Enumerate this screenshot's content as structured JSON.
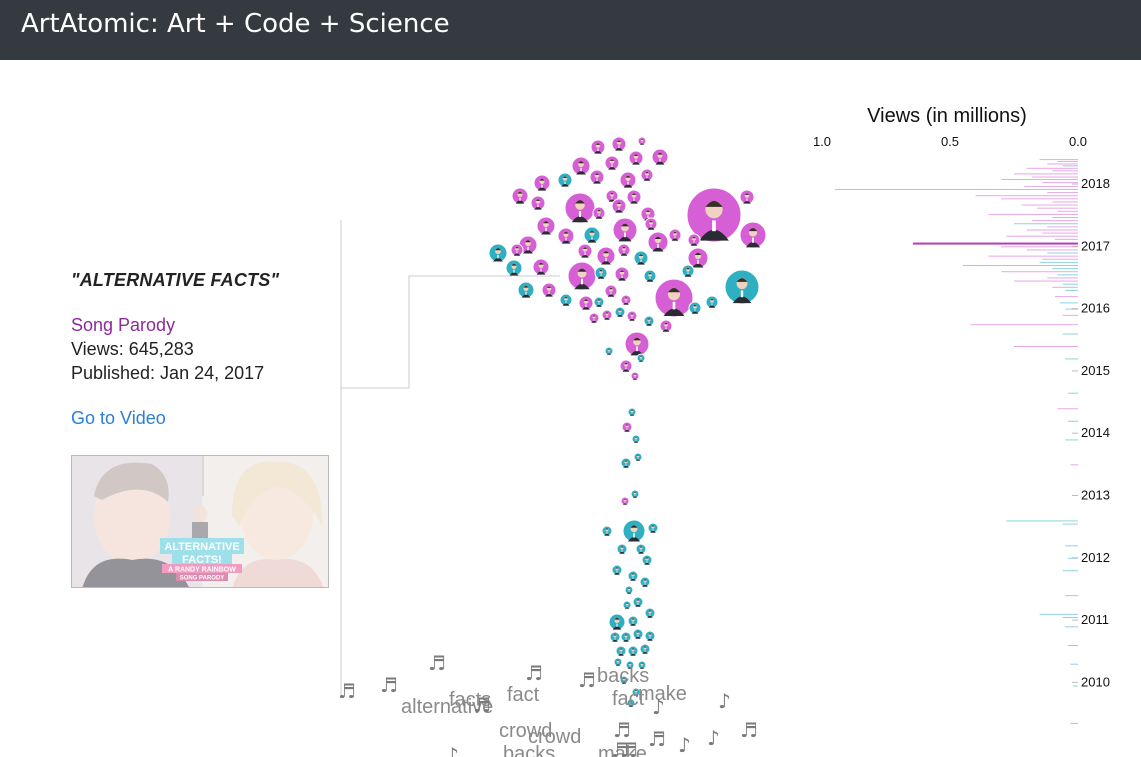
{
  "header": {
    "title": "ArtAtomic: Art + Code + Science"
  },
  "info": {
    "title": "\"ALTERNATIVE FACTS\"",
    "category": "Song Parody",
    "views": "Views: 645,283",
    "published": "Published: Jan 24, 2017",
    "link": "Go to Video",
    "thumbnail": {
      "line1": "ALTERNATIVE",
      "line2": "FACTS!",
      "line3": "A RANDY RAINBOW",
      "line4": "SONG PARODY"
    }
  },
  "colors": {
    "parody": "#d65fd6",
    "other": "#2eb0c2",
    "header_bg": "#343a40",
    "link": "#2a7fd4",
    "category": "#8e2a9c"
  },
  "chart_data": {
    "type": "bar",
    "title": "Views (in millions)",
    "x_ticks": [
      "1.0",
      "0.5",
      "0.0"
    ],
    "xlim": [
      1.0,
      0.0
    ],
    "y_ticks": [
      "2018",
      "2017",
      "2016",
      "2015",
      "2014",
      "2013",
      "2012",
      "2011",
      "2010"
    ],
    "year_values": [
      2018,
      2017,
      2016,
      2015,
      2014,
      2013,
      2012,
      2011,
      2010
    ],
    "highlight": {
      "date": "2017-01-24",
      "views_millions": 0.645
    },
    "bars": [
      {
        "year": 2018.4,
        "v": 0.15,
        "c": "p"
      },
      {
        "year": 2018.37,
        "v": 0.08,
        "c": "p"
      },
      {
        "year": 2018.33,
        "v": 0.12,
        "c": "p"
      },
      {
        "year": 2018.3,
        "v": 0.06,
        "c": "t"
      },
      {
        "year": 2018.26,
        "v": 0.2,
        "c": "p"
      },
      {
        "year": 2018.22,
        "v": 0.1,
        "c": "p"
      },
      {
        "year": 2018.17,
        "v": 0.25,
        "c": "p"
      },
      {
        "year": 2018.12,
        "v": 0.18,
        "c": "p"
      },
      {
        "year": 2018.08,
        "v": 0.3,
        "c": "p"
      },
      {
        "year": 2018.03,
        "v": 0.14,
        "c": "p"
      },
      {
        "year": 2017.97,
        "v": 0.21,
        "c": "p"
      },
      {
        "year": 2017.92,
        "v": 0.95,
        "c": "p"
      },
      {
        "year": 2017.87,
        "v": 0.12,
        "c": "p"
      },
      {
        "year": 2017.82,
        "v": 0.4,
        "c": "p"
      },
      {
        "year": 2017.77,
        "v": 0.3,
        "c": "p"
      },
      {
        "year": 2017.72,
        "v": 0.1,
        "c": "p"
      },
      {
        "year": 2017.67,
        "v": 0.22,
        "c": "p"
      },
      {
        "year": 2017.62,
        "v": 0.16,
        "c": "p"
      },
      {
        "year": 2017.57,
        "v": 0.08,
        "c": "p"
      },
      {
        "year": 2017.52,
        "v": 0.35,
        "c": "p"
      },
      {
        "year": 2017.47,
        "v": 0.1,
        "c": "p"
      },
      {
        "year": 2017.42,
        "v": 0.18,
        "c": "p"
      },
      {
        "year": 2017.37,
        "v": 0.25,
        "c": "t"
      },
      {
        "year": 2017.32,
        "v": 0.12,
        "c": "p"
      },
      {
        "year": 2017.27,
        "v": 0.2,
        "c": "p"
      },
      {
        "year": 2017.22,
        "v": 0.14,
        "c": "p"
      },
      {
        "year": 2017.17,
        "v": 0.28,
        "c": "p"
      },
      {
        "year": 2017.12,
        "v": 0.09,
        "c": "p"
      },
      {
        "year": 2017.06,
        "v": 0.645,
        "c": "h"
      },
      {
        "year": 2017.0,
        "v": 0.3,
        "c": "p"
      },
      {
        "year": 2016.95,
        "v": 0.2,
        "c": "p"
      },
      {
        "year": 2016.9,
        "v": 0.12,
        "c": "t"
      },
      {
        "year": 2016.85,
        "v": 0.35,
        "c": "p"
      },
      {
        "year": 2016.8,
        "v": 0.14,
        "c": "p"
      },
      {
        "year": 2016.75,
        "v": 0.15,
        "c": "t"
      },
      {
        "year": 2016.7,
        "v": 0.45,
        "c": "p"
      },
      {
        "year": 2016.65,
        "v": 0.1,
        "c": "t"
      },
      {
        "year": 2016.6,
        "v": 0.3,
        "c": "p"
      },
      {
        "year": 2016.55,
        "v": 0.08,
        "c": "t"
      },
      {
        "year": 2016.5,
        "v": 0.12,
        "c": "p"
      },
      {
        "year": 2016.45,
        "v": 0.25,
        "c": "p"
      },
      {
        "year": 2016.4,
        "v": 0.06,
        "c": "t"
      },
      {
        "year": 2016.35,
        "v": 0.1,
        "c": "p"
      },
      {
        "year": 2016.3,
        "v": 0.05,
        "c": "t"
      },
      {
        "year": 2016.2,
        "v": 0.09,
        "c": "p"
      },
      {
        "year": 2016.1,
        "v": 0.07,
        "c": "t"
      },
      {
        "year": 2016.0,
        "v": 0.05,
        "c": "t"
      },
      {
        "year": 2015.9,
        "v": 0.06,
        "c": "p"
      },
      {
        "year": 2015.75,
        "v": 0.42,
        "c": "p"
      },
      {
        "year": 2015.6,
        "v": 0.06,
        "c": "t"
      },
      {
        "year": 2015.4,
        "v": 0.25,
        "c": "p"
      },
      {
        "year": 2015.2,
        "v": 0.05,
        "c": "t"
      },
      {
        "year": 2014.65,
        "v": 0.04,
        "c": "t"
      },
      {
        "year": 2014.4,
        "v": 0.08,
        "c": "p"
      },
      {
        "year": 2014.2,
        "v": 0.04,
        "c": "t"
      },
      {
        "year": 2013.9,
        "v": 0.05,
        "c": "t"
      },
      {
        "year": 2013.5,
        "v": 0.03,
        "c": "p"
      },
      {
        "year": 2012.6,
        "v": 0.28,
        "c": "t"
      },
      {
        "year": 2012.55,
        "v": 0.06,
        "c": "t"
      },
      {
        "year": 2012.2,
        "v": 0.05,
        "c": "t"
      },
      {
        "year": 2012.0,
        "v": 0.04,
        "c": "t"
      },
      {
        "year": 2011.8,
        "v": 0.06,
        "c": "t"
      },
      {
        "year": 2011.4,
        "v": 0.05,
        "c": "t"
      },
      {
        "year": 2011.1,
        "v": 0.15,
        "c": "t"
      },
      {
        "year": 2011.05,
        "v": 0.06,
        "c": "t"
      },
      {
        "year": 2010.9,
        "v": 0.05,
        "c": "t"
      },
      {
        "year": 2010.6,
        "v": 0.04,
        "c": "t"
      },
      {
        "year": 2010.3,
        "v": 0.03,
        "c": "t"
      },
      {
        "year": 2009.95,
        "v": 0.02,
        "c": "t"
      },
      {
        "year": 2009.35,
        "v": 0.03,
        "c": "t"
      }
    ]
  },
  "words": [
    {
      "text": "alternative"
    },
    {
      "text": "facts"
    },
    {
      "text": "fact"
    },
    {
      "text": "backs"
    },
    {
      "text": "make"
    },
    {
      "text": "fact"
    },
    {
      "text": "crowd"
    },
    {
      "text": "crowd"
    },
    {
      "text": "backs"
    },
    {
      "text": "make"
    }
  ]
}
